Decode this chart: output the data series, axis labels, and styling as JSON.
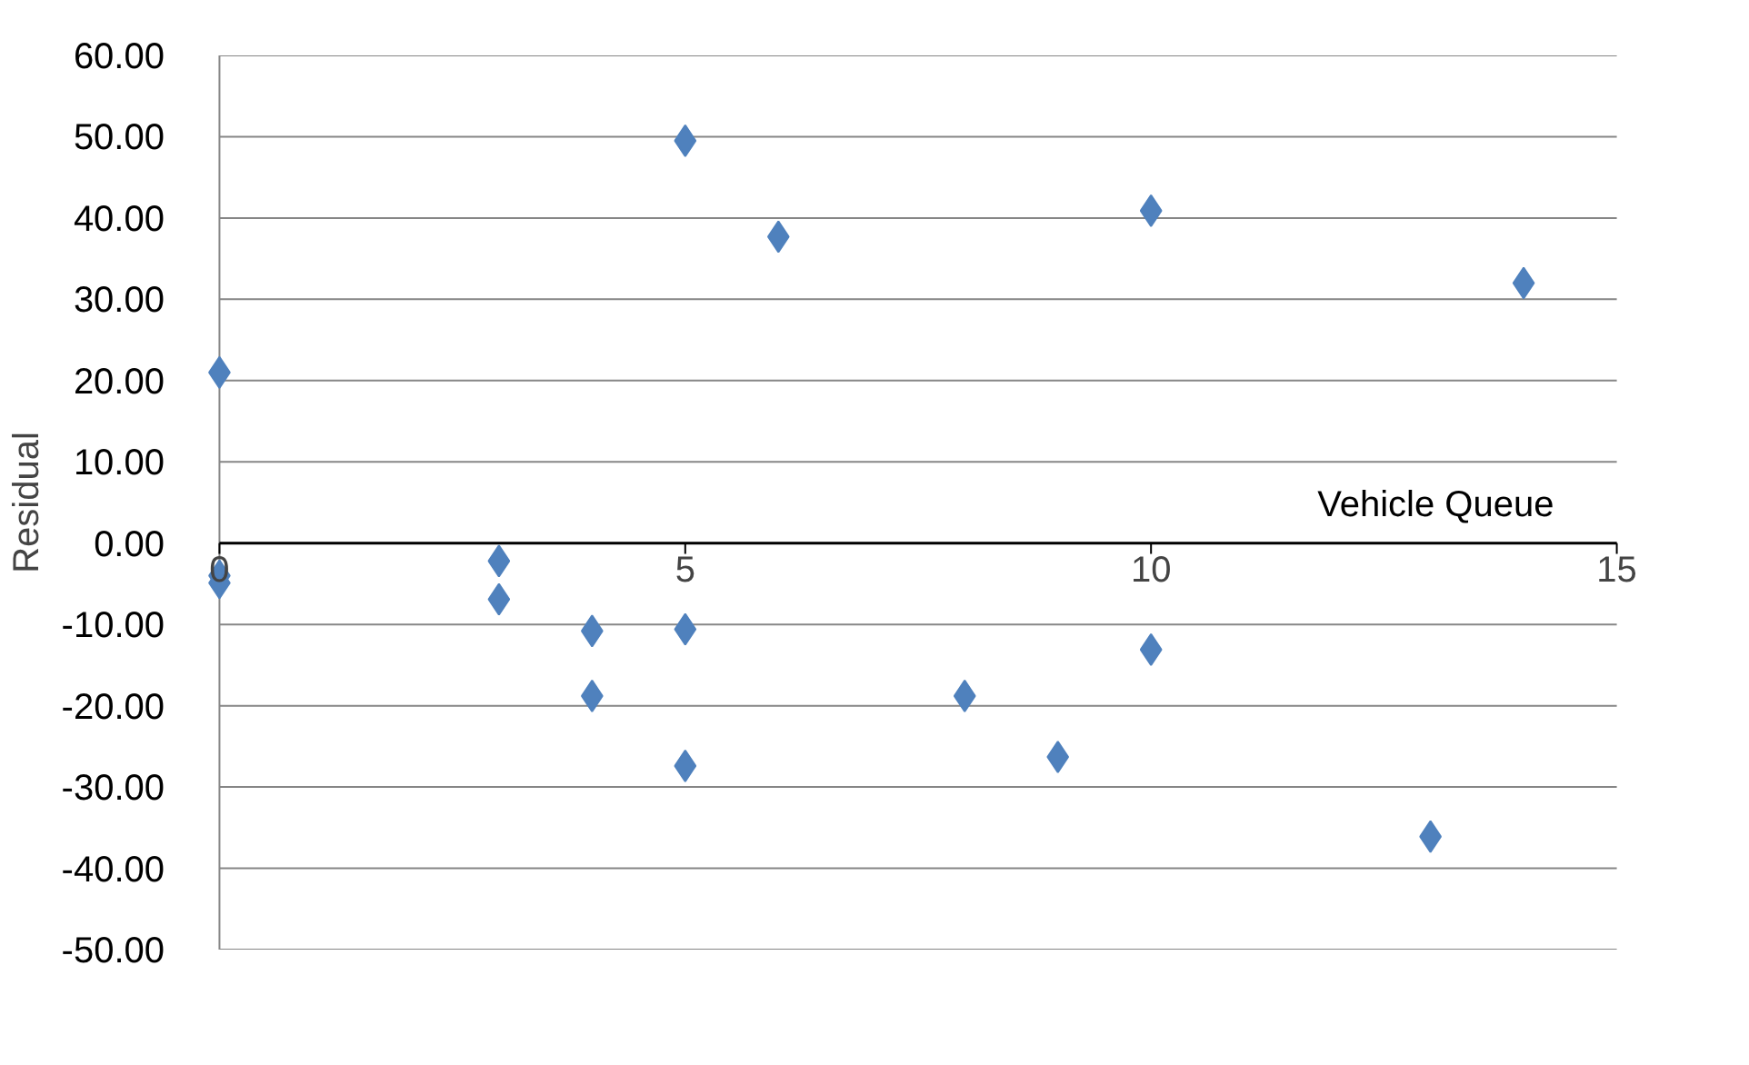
{
  "chart_data": {
    "type": "scatter",
    "xlabel": "Vehicle Queue",
    "ylabel": "Residual",
    "x": [
      0,
      0,
      0,
      3,
      3,
      4,
      4,
      5,
      5,
      5,
      6,
      8,
      9,
      10,
      10,
      13,
      14
    ],
    "series": [
      {
        "color": "#4f81bd",
        "values": [
          21.0,
          -4.0,
          -4.9,
          -2.2,
          -6.9,
          -10.8,
          -18.8,
          49.5,
          -10.6,
          -27.4,
          37.7,
          -18.8,
          -26.3,
          40.9,
          -13.1,
          -36.1,
          32.0
        ]
      }
    ],
    "xlim": [
      0,
      15
    ],
    "xticks": [
      0,
      5,
      10,
      15
    ],
    "ylim": [
      -50,
      60
    ],
    "yticks": [
      {
        "value": -50,
        "label": "-50.00"
      },
      {
        "value": -40,
        "label": "-40.00"
      },
      {
        "value": -30,
        "label": "-30.00"
      },
      {
        "value": -20,
        "label": "-20.00"
      },
      {
        "value": -10,
        "label": "-10.00"
      },
      {
        "value": 0,
        "label": "0.00"
      },
      {
        "value": 10,
        "label": "10.00"
      },
      {
        "value": 20,
        "label": "20.00"
      },
      {
        "value": 30,
        "label": "30.00"
      },
      {
        "value": 40,
        "label": "40.00"
      },
      {
        "value": 50,
        "label": "50.00"
      },
      {
        "value": 60,
        "label": "60.00"
      }
    ],
    "grid": "y",
    "marker": "diamond"
  }
}
